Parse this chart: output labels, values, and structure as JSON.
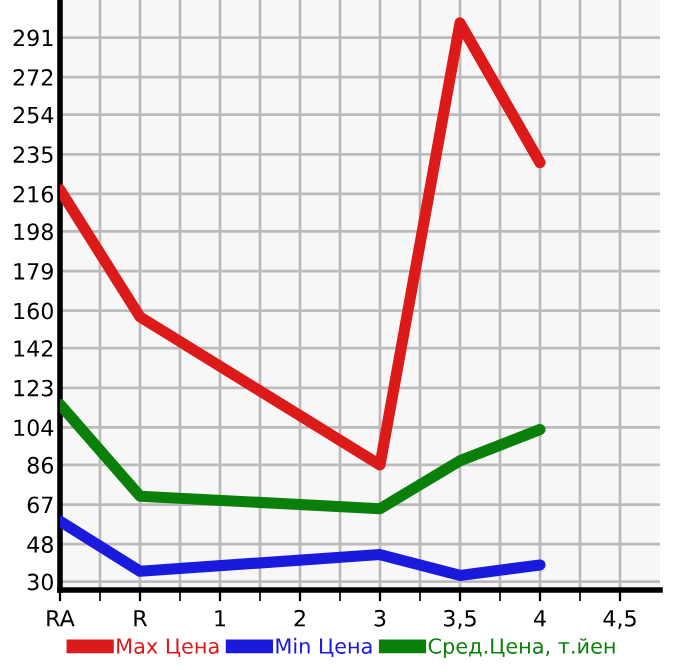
{
  "chart_data": {
    "type": "line",
    "categories": [
      "RA",
      "R",
      "1",
      "2",
      "3",
      "3,5",
      "4",
      "4,5"
    ],
    "series": [
      {
        "name": "Max Цена",
        "color": "#dd1a1a",
        "values": [
          218,
          157,
          null,
          null,
          86,
          298,
          231,
          null
        ]
      },
      {
        "name": "Min Цена",
        "color": "#1a1add",
        "values": [
          59,
          35,
          null,
          null,
          43,
          33,
          38,
          null
        ]
      },
      {
        "name": "Сред.Цена, т.йен",
        "color": "#0a800a",
        "values": [
          115,
          71,
          null,
          null,
          65,
          88,
          103,
          null
        ]
      }
    ],
    "ylim": [
      26,
      309
    ],
    "yticks": [
      30,
      48,
      67,
      86,
      104,
      123,
      142,
      160,
      179,
      198,
      216,
      235,
      254,
      272,
      291
    ],
    "grid": true,
    "legend": "bottom",
    "marker": "none",
    "line_style": "solid"
  }
}
